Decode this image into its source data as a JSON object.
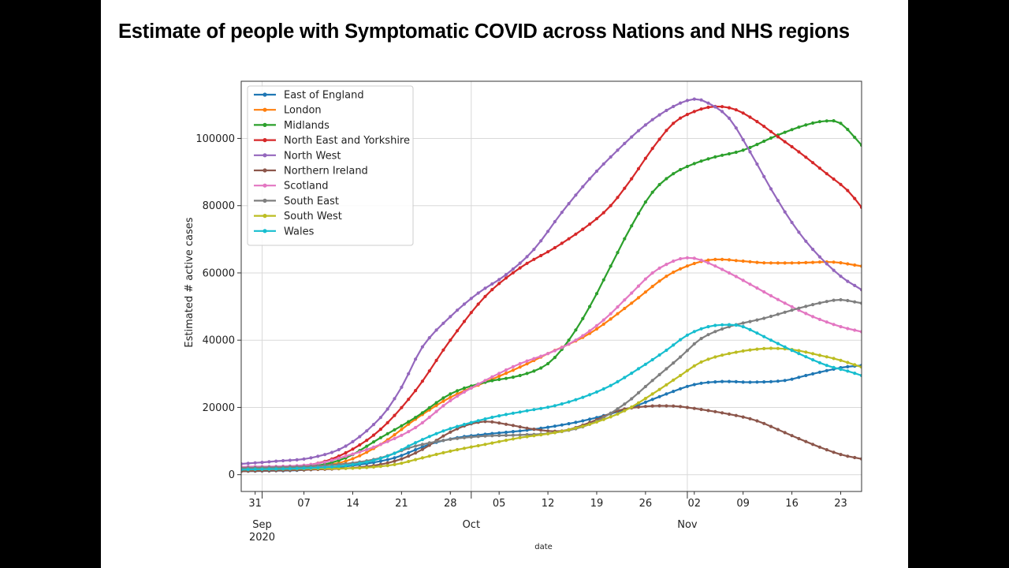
{
  "title": "Estimate of people with Symptomatic COVID across Nations and NHS regions",
  "chart_data": {
    "type": "line",
    "title": "Estimate of people with Symptomatic COVID across Nations and NHS regions",
    "xlabel": "date",
    "ylabel": "Estimated # active cases",
    "ylim": [
      -5000,
      117000
    ],
    "grid": true,
    "legend_position": "upper-left",
    "x_start_date": "2020-08-29",
    "x_end_date": "2020-11-26",
    "y_ticks": [
      0,
      20000,
      40000,
      60000,
      80000,
      100000
    ],
    "y_tick_labels": [
      "0",
      "20000",
      "40000",
      "60000",
      "80000",
      "100000"
    ],
    "x_minor_ticks": [
      {
        "day": 2,
        "label": "31"
      },
      {
        "day": 9,
        "label": "07"
      },
      {
        "day": 16,
        "label": "14"
      },
      {
        "day": 23,
        "label": "21"
      },
      {
        "day": 30,
        "label": "28"
      },
      {
        "day": 37,
        "label": "05"
      },
      {
        "day": 44,
        "label": "12"
      },
      {
        "day": 51,
        "label": "19"
      },
      {
        "day": 58,
        "label": "26"
      },
      {
        "day": 65,
        "label": "02"
      },
      {
        "day": 72,
        "label": "09"
      },
      {
        "day": 79,
        "label": "16"
      },
      {
        "day": 86,
        "label": "23"
      }
    ],
    "x_major_ticks": [
      {
        "day": 3,
        "label": "Sep",
        "sublabel": "2020"
      },
      {
        "day": 33,
        "label": "Oct",
        "sublabel": ""
      },
      {
        "day": 64,
        "label": "Nov",
        "sublabel": ""
      }
    ],
    "series": [
      {
        "name": "East of England",
        "color": "#1f77b4",
        "points": [
          [
            0,
            1000
          ],
          [
            10,
            1500
          ],
          [
            17,
            3000
          ],
          [
            22,
            5000
          ],
          [
            27,
            9000
          ],
          [
            31,
            11000
          ],
          [
            35,
            12000
          ],
          [
            42,
            13500
          ],
          [
            49,
            16000
          ],
          [
            56,
            20000
          ],
          [
            61,
            24000
          ],
          [
            65,
            26800
          ],
          [
            69,
            27700
          ],
          [
            73,
            27500
          ],
          [
            78,
            28000
          ],
          [
            81,
            29500
          ],
          [
            86,
            31800
          ],
          [
            89,
            32500
          ]
        ]
      },
      {
        "name": "London",
        "color": "#ff7f0e",
        "points": [
          [
            0,
            2000
          ],
          [
            10,
            2500
          ],
          [
            15,
            4000
          ],
          [
            20,
            9000
          ],
          [
            25,
            16500
          ],
          [
            30,
            23000
          ],
          [
            35,
            27500
          ],
          [
            40,
            32000
          ],
          [
            44,
            36000
          ],
          [
            50,
            42000
          ],
          [
            56,
            51000
          ],
          [
            61,
            59000
          ],
          [
            65,
            62800
          ],
          [
            68,
            64000
          ],
          [
            72,
            63500
          ],
          [
            75,
            63000
          ],
          [
            80,
            63000
          ],
          [
            85,
            63200
          ],
          [
            89,
            62000
          ]
        ]
      },
      {
        "name": "Midlands",
        "color": "#2ca02c",
        "points": [
          [
            0,
            1800
          ],
          [
            10,
            2500
          ],
          [
            15,
            5000
          ],
          [
            20,
            11000
          ],
          [
            25,
            17000
          ],
          [
            30,
            24000
          ],
          [
            35,
            27500
          ],
          [
            40,
            29500
          ],
          [
            44,
            33000
          ],
          [
            47,
            40000
          ],
          [
            50,
            50000
          ],
          [
            53,
            62000
          ],
          [
            56,
            74000
          ],
          [
            59,
            84000
          ],
          [
            62,
            89500
          ],
          [
            65,
            92500
          ],
          [
            68,
            94500
          ],
          [
            72,
            96500
          ],
          [
            77,
            101000
          ],
          [
            81,
            104000
          ],
          [
            84,
            105200
          ],
          [
            86,
            104500
          ],
          [
            89,
            98000
          ]
        ]
      },
      {
        "name": "North East and Yorkshire",
        "color": "#d62728",
        "points": [
          [
            0,
            2000
          ],
          [
            10,
            3000
          ],
          [
            15,
            6500
          ],
          [
            20,
            13500
          ],
          [
            25,
            25000
          ],
          [
            30,
            40000
          ],
          [
            35,
            53000
          ],
          [
            40,
            61500
          ],
          [
            45,
            67500
          ],
          [
            50,
            74500
          ],
          [
            53,
            80000
          ],
          [
            56,
            88000
          ],
          [
            59,
            97000
          ],
          [
            62,
            104500
          ],
          [
            65,
            108000
          ],
          [
            68,
            109500
          ],
          [
            71,
            108500
          ],
          [
            74,
            105000
          ],
          [
            77,
            100500
          ],
          [
            80,
            96000
          ],
          [
            84,
            89500
          ],
          [
            87,
            84500
          ],
          [
            89,
            79500
          ]
        ]
      },
      {
        "name": "North West",
        "color": "#9467bd",
        "points": [
          [
            0,
            3200
          ],
          [
            5,
            4000
          ],
          [
            10,
            5000
          ],
          [
            15,
            8500
          ],
          [
            20,
            17000
          ],
          [
            23,
            26000
          ],
          [
            26,
            38000
          ],
          [
            30,
            47000
          ],
          [
            34,
            54000
          ],
          [
            38,
            59500
          ],
          [
            42,
            67000
          ],
          [
            46,
            78000
          ],
          [
            50,
            88000
          ],
          [
            54,
            96500
          ],
          [
            58,
            104000
          ],
          [
            62,
            109500
          ],
          [
            65,
            111700
          ],
          [
            67,
            110500
          ],
          [
            70,
            106000
          ],
          [
            73,
            96000
          ],
          [
            76,
            85000
          ],
          [
            79,
            75000
          ],
          [
            82,
            67000
          ],
          [
            86,
            59000
          ],
          [
            89,
            55000
          ]
        ]
      },
      {
        "name": "Northern Ireland",
        "color": "#8c564b",
        "points": [
          [
            0,
            1000
          ],
          [
            10,
            1500
          ],
          [
            17,
            2200
          ],
          [
            22,
            4000
          ],
          [
            26,
            7500
          ],
          [
            29,
            11500
          ],
          [
            32,
            14500
          ],
          [
            35,
            15800
          ],
          [
            38,
            15000
          ],
          [
            42,
            13500
          ],
          [
            46,
            13000
          ],
          [
            50,
            15500
          ],
          [
            54,
            19000
          ],
          [
            58,
            20300
          ],
          [
            62,
            20400
          ],
          [
            65,
            19700
          ],
          [
            70,
            18000
          ],
          [
            74,
            16000
          ],
          [
            78,
            12500
          ],
          [
            82,
            9000
          ],
          [
            86,
            6000
          ],
          [
            89,
            4700
          ]
        ]
      },
      {
        "name": "Scotland",
        "color": "#e377c2",
        "points": [
          [
            0,
            2300
          ],
          [
            10,
            3000
          ],
          [
            15,
            5500
          ],
          [
            20,
            9000
          ],
          [
            25,
            14000
          ],
          [
            30,
            22000
          ],
          [
            35,
            28000
          ],
          [
            40,
            33000
          ],
          [
            44,
            36000
          ],
          [
            48,
            40000
          ],
          [
            52,
            46000
          ],
          [
            56,
            54000
          ],
          [
            59,
            60000
          ],
          [
            62,
            63500
          ],
          [
            64,
            64500
          ],
          [
            66,
            63800
          ],
          [
            70,
            60000
          ],
          [
            74,
            55500
          ],
          [
            78,
            51000
          ],
          [
            82,
            47000
          ],
          [
            86,
            44000
          ],
          [
            89,
            42500
          ]
        ]
      },
      {
        "name": "South East",
        "color": "#7f7f7f",
        "points": [
          [
            0,
            2000
          ],
          [
            10,
            2500
          ],
          [
            16,
            3500
          ],
          [
            20,
            5000
          ],
          [
            25,
            8500
          ],
          [
            30,
            10500
          ],
          [
            35,
            11500
          ],
          [
            40,
            11800
          ],
          [
            45,
            12500
          ],
          [
            50,
            15000
          ],
          [
            55,
            21000
          ],
          [
            59,
            28000
          ],
          [
            63,
            35000
          ],
          [
            66,
            40500
          ],
          [
            70,
            44000
          ],
          [
            75,
            46500
          ],
          [
            80,
            49500
          ],
          [
            84,
            51500
          ],
          [
            86,
            52000
          ],
          [
            89,
            51000
          ]
        ]
      },
      {
        "name": "South West",
        "color": "#bcbd22",
        "points": [
          [
            0,
            1500
          ],
          [
            10,
            1800
          ],
          [
            17,
            2000
          ],
          [
            22,
            3000
          ],
          [
            26,
            5000
          ],
          [
            30,
            7000
          ],
          [
            35,
            9000
          ],
          [
            40,
            11000
          ],
          [
            45,
            12500
          ],
          [
            50,
            15000
          ],
          [
            55,
            19000
          ],
          [
            59,
            24000
          ],
          [
            63,
            29500
          ],
          [
            66,
            33500
          ],
          [
            70,
            36000
          ],
          [
            75,
            37500
          ],
          [
            79,
            37200
          ],
          [
            83,
            35500
          ],
          [
            86,
            34000
          ],
          [
            89,
            32000
          ]
        ]
      },
      {
        "name": "Wales",
        "color": "#17becf",
        "points": [
          [
            0,
            1500
          ],
          [
            10,
            2000
          ],
          [
            16,
            3000
          ],
          [
            21,
            5500
          ],
          [
            25,
            9500
          ],
          [
            29,
            13000
          ],
          [
            33,
            15500
          ],
          [
            37,
            17500
          ],
          [
            41,
            19000
          ],
          [
            45,
            20500
          ],
          [
            49,
            23000
          ],
          [
            53,
            26500
          ],
          [
            57,
            31500
          ],
          [
            61,
            37000
          ],
          [
            64,
            41500
          ],
          [
            67,
            44000
          ],
          [
            70,
            44600
          ],
          [
            72,
            44000
          ],
          [
            76,
            40000
          ],
          [
            80,
            36000
          ],
          [
            84,
            32500
          ],
          [
            87,
            30800
          ],
          [
            89,
            29500
          ]
        ]
      }
    ]
  }
}
